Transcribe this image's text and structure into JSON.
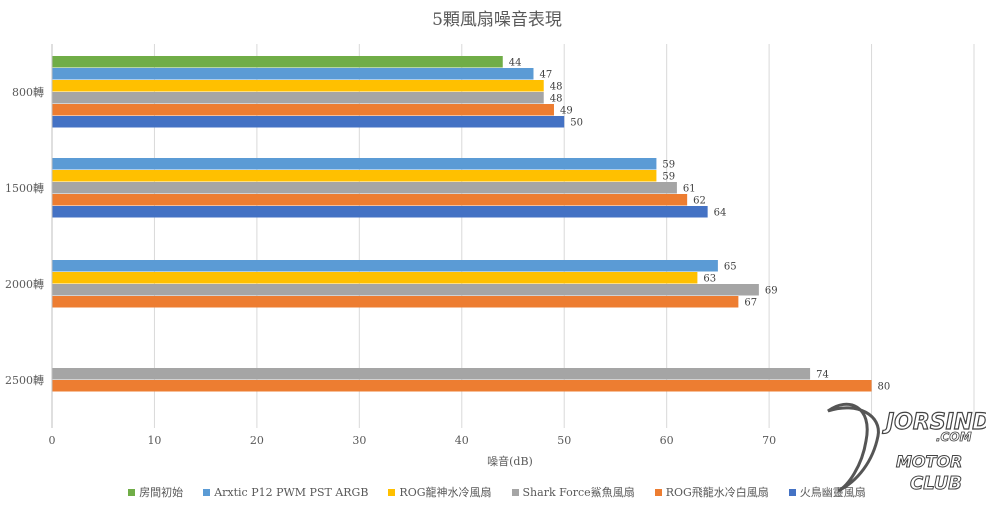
{
  "chart_data": {
    "type": "bar",
    "orientation": "horizontal",
    "title": "5顆風扇噪音表現",
    "xlabel": "噪音(dB)",
    "ylabel": "",
    "xlim": [
      0,
      90
    ],
    "xticks": [
      0,
      10,
      20,
      30,
      40,
      50,
      60,
      70
    ],
    "grid": true,
    "legend_position": "bottom",
    "categories": [
      "800轉",
      "1500轉",
      "2000轉",
      "2500轉"
    ],
    "series": [
      {
        "name": "房間初始",
        "color": "#70AD47",
        "values": [
          44,
          null,
          null,
          null
        ]
      },
      {
        "name": "Arxtic P12 PWM PST ARGB",
        "color": "#5B9BD5",
        "values": [
          47,
          59,
          65,
          null
        ]
      },
      {
        "name": "ROG龍神水冷風扇",
        "color": "#FFC000",
        "values": [
          48,
          59,
          63,
          null
        ]
      },
      {
        "name": "Shark Force鯊魚風扇",
        "color": "#A5A5A5",
        "values": [
          48,
          61,
          69,
          74
        ]
      },
      {
        "name": "ROG飛龍水冷白風扇",
        "color": "#ED7D31",
        "values": [
          49,
          62,
          67,
          80
        ]
      },
      {
        "name": "火鳥幽靈風扇",
        "color": "#4472C4",
        "values": [
          50,
          64,
          null,
          null
        ]
      }
    ]
  },
  "watermark": {
    "brand": "JORSINDO.COM",
    "sub": "MOTOR CLUB"
  }
}
